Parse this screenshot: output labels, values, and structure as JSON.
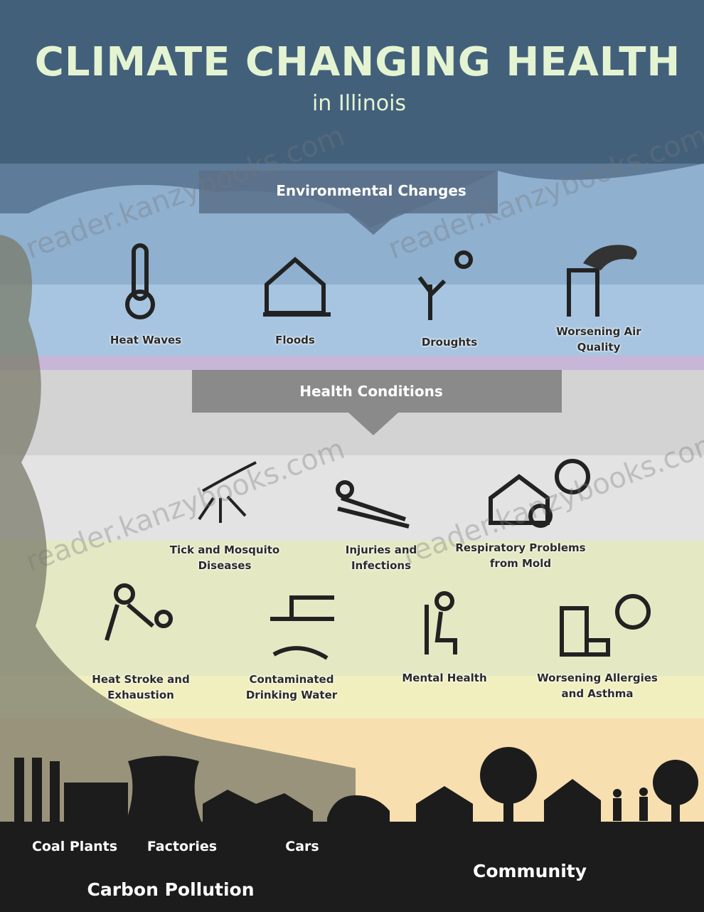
{
  "header": {
    "title": "CLIMATE CHANGING HEALTH",
    "subtitle": "in Illinois"
  },
  "environmental_changes": {
    "heading": "Environmental Changes",
    "items": [
      "Heat Waves",
      "Floods",
      "Droughts",
      "Worsening Air Quality"
    ]
  },
  "health_conditions": {
    "heading": "Health Conditions",
    "items": [
      "Tick and Mosquito Diseases",
      "Injuries and Infections",
      "Respiratory Problems from Mold",
      "Heat Stroke and Exhaustion",
      "Contaminated Drinking Water",
      "Mental Health",
      "Worsening Allergies and Asthma"
    ]
  },
  "sources": {
    "items": [
      "Coal Plants",
      "Factories",
      "Cars"
    ],
    "label": "Carbon Pollution"
  },
  "community": "Community",
  "watermark": "reader.kanzybooks.com"
}
